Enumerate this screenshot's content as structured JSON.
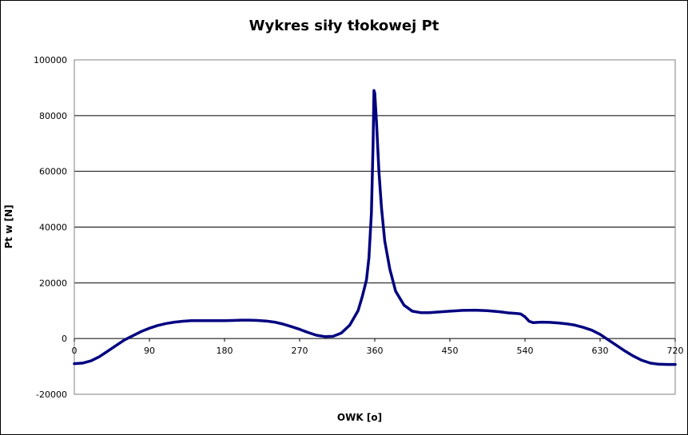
{
  "chart_data": {
    "type": "line",
    "title": "Wykres siły tłokowej Pt",
    "xlabel": "OWK [o]",
    "ylabel": "Pt w [N]",
    "xlim": [
      0,
      720
    ],
    "ylim": [
      -20000,
      100000
    ],
    "xticks": [
      0,
      90,
      180,
      270,
      360,
      450,
      540,
      630,
      720
    ],
    "yticks": [
      -20000,
      0,
      20000,
      40000,
      60000,
      80000,
      100000
    ],
    "grid": "horizontal",
    "line_color": "#000080",
    "series": [
      {
        "x": [
          0,
          10,
          20,
          30,
          40,
          50,
          60,
          70,
          80,
          90,
          100,
          110,
          120,
          130,
          140,
          150,
          160,
          170,
          180,
          190,
          200,
          210,
          220,
          230,
          240,
          250,
          260,
          270,
          280,
          290,
          300,
          310,
          320,
          330,
          340,
          345,
          350,
          353,
          356,
          358,
          359,
          360,
          362,
          365,
          368,
          372,
          378,
          385,
          395,
          405,
          415,
          425,
          435,
          450,
          465,
          480,
          495,
          510,
          520,
          530,
          535,
          540,
          545,
          550,
          555,
          560,
          570,
          580,
          590,
          600,
          610,
          620,
          630,
          640,
          650,
          660,
          670,
          680,
          690,
          700,
          710,
          720
        ],
        "y": [
          -9000,
          -8800,
          -8000,
          -6500,
          -4500,
          -2500,
          -500,
          1000,
          2500,
          3700,
          4700,
          5400,
          5900,
          6200,
          6400,
          6400,
          6400,
          6400,
          6400,
          6500,
          6600,
          6600,
          6500,
          6300,
          5900,
          5200,
          4300,
          3300,
          2200,
          1200,
          700,
          800,
          2000,
          4800,
          10000,
          15000,
          21000,
          29000,
          45000,
          70000,
          89000,
          88000,
          78000,
          60000,
          47000,
          35000,
          25000,
          17000,
          12000,
          9800,
          9300,
          9300,
          9500,
          9800,
          10100,
          10200,
          10000,
          9600,
          9200,
          9000,
          8800,
          7800,
          6200,
          5700,
          5800,
          5900,
          5800,
          5600,
          5300,
          4800,
          4000,
          3000,
          1500,
          -500,
          -2500,
          -4500,
          -6300,
          -7800,
          -8800,
          -9200,
          -9300,
          -9300
        ]
      }
    ]
  }
}
